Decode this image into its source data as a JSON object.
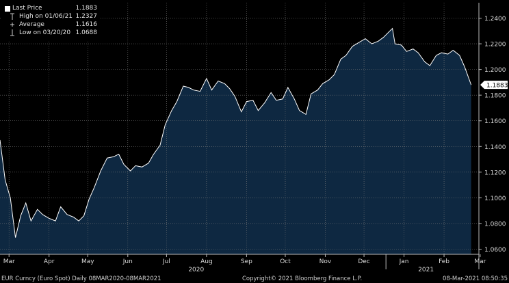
{
  "legend": {
    "items": [
      {
        "label": "Last Price",
        "value": "1.1883",
        "icon": "filled-square-icon"
      },
      {
        "label": "High on 01/06/21",
        "value": "1.2327",
        "icon": "high-marker-icon"
      },
      {
        "label": "Average",
        "value": "1.1616",
        "icon": "cross-marker-icon"
      },
      {
        "label": "Low on 03/20/20",
        "value": "1.0688",
        "icon": "low-marker-icon"
      }
    ]
  },
  "last_price_tag": "1.1883",
  "footer": {
    "left": "EUR Curncy (Euro Spot)  Daily 08MAR2020-08MAR2021",
    "center": "Copyright© 2021 Bloomberg Finance L.P.",
    "right": "08-Mar-2021 08:50:35"
  },
  "colors": {
    "background": "#000000",
    "area_fill": "#0e2841",
    "line": "#ffffff",
    "grid": "#7a7a7a",
    "tag_bg": "#ffffff",
    "tag_text": "#000000"
  },
  "chart_data": {
    "type": "area",
    "series": [
      {
        "name": "Last Price",
        "x": [
          "2020-03-08",
          "2020-03-12",
          "2020-03-16",
          "2020-03-20",
          "2020-03-24",
          "2020-03-28",
          "2020-04-01",
          "2020-04-06",
          "2020-04-10",
          "2020-04-15",
          "2020-04-20",
          "2020-04-24",
          "2020-04-29",
          "2020-05-04",
          "2020-05-08",
          "2020-05-12",
          "2020-05-16",
          "2020-05-20",
          "2020-05-25",
          "2020-05-30",
          "2020-06-04",
          "2020-06-08",
          "2020-06-12",
          "2020-06-17",
          "2020-06-21",
          "2020-06-26",
          "2020-07-01",
          "2020-07-05",
          "2020-07-10",
          "2020-07-14",
          "2020-07-19",
          "2020-07-23",
          "2020-07-28",
          "2020-08-01",
          "2020-08-05",
          "2020-08-10",
          "2020-08-15",
          "2020-08-19",
          "2020-08-24",
          "2020-08-29",
          "2020-09-02",
          "2020-09-06",
          "2020-09-11",
          "2020-09-15",
          "2020-09-20",
          "2020-09-24",
          "2020-09-29",
          "2020-10-04",
          "2020-10-08",
          "2020-10-13",
          "2020-10-17",
          "2020-10-22",
          "2020-10-26",
          "2020-10-31",
          "2020-11-04",
          "2020-11-09",
          "2020-11-13",
          "2020-11-18",
          "2020-11-22",
          "2020-11-27",
          "2020-12-01",
          "2020-12-06",
          "2020-12-11",
          "2020-12-16",
          "2020-12-21",
          "2020-12-26",
          "2020-12-30",
          "2021-01-04",
          "2021-01-06",
          "2021-01-08",
          "2021-01-13",
          "2021-01-17",
          "2021-01-22",
          "2021-01-26",
          "2021-01-31",
          "2021-02-04",
          "2021-02-09",
          "2021-02-13",
          "2021-02-18",
          "2021-02-22",
          "2021-02-27",
          "2021-03-03",
          "2021-03-08"
        ],
        "y": [
          1.145,
          1.114,
          1.1,
          1.069,
          1.086,
          1.096,
          1.082,
          1.091,
          1.087,
          1.084,
          1.082,
          1.093,
          1.087,
          1.085,
          1.082,
          1.086,
          1.099,
          1.108,
          1.121,
          1.131,
          1.132,
          1.134,
          1.126,
          1.121,
          1.125,
          1.124,
          1.127,
          1.134,
          1.141,
          1.157,
          1.168,
          1.175,
          1.187,
          1.186,
          1.184,
          1.183,
          1.193,
          1.184,
          1.191,
          1.189,
          1.185,
          1.179,
          1.167,
          1.175,
          1.176,
          1.168,
          1.174,
          1.182,
          1.176,
          1.177,
          1.186,
          1.177,
          1.168,
          1.165,
          1.181,
          1.184,
          1.189,
          1.192,
          1.196,
          1.208,
          1.211,
          1.218,
          1.221,
          1.224,
          1.22,
          1.222,
          1.225,
          1.23,
          1.232,
          1.22,
          1.219,
          1.214,
          1.216,
          1.213,
          1.206,
          1.203,
          1.211,
          1.213,
          1.212,
          1.215,
          1.211,
          1.202,
          1.188
        ]
      }
    ],
    "ylim": [
      1.056,
      1.252
    ],
    "y_ticks": [
      "1.0600",
      "1.0800",
      "1.1000",
      "1.1200",
      "1.1400",
      "1.1600",
      "1.1800",
      "1.2000",
      "1.2200",
      "1.2400"
    ],
    "x_ticks": [
      {
        "label": "Mar",
        "date": "2020-03-15"
      },
      {
        "label": "Apr",
        "date": "2020-04-15"
      },
      {
        "label": "May",
        "date": "2020-05-15"
      },
      {
        "label": "Jun",
        "date": "2020-06-15"
      },
      {
        "label": "Jul",
        "date": "2020-07-15"
      },
      {
        "label": "Aug",
        "date": "2020-08-15"
      },
      {
        "label": "Sep",
        "date": "2020-09-15"
      },
      {
        "label": "Oct",
        "date": "2020-10-15"
      },
      {
        "label": "Nov",
        "date": "2020-11-15"
      },
      {
        "label": "Dec",
        "date": "2020-12-15"
      },
      {
        "label": "Jan",
        "date": "2021-01-15"
      },
      {
        "label": "Feb",
        "date": "2021-02-15"
      },
      {
        "label": "Mar",
        "date": "2021-03-15"
      }
    ],
    "year_labels": [
      {
        "label": "2020",
        "date": "2020-08-07"
      },
      {
        "label": "2021",
        "date": "2021-02-01"
      }
    ],
    "grid": true,
    "y_axis_side": "right",
    "legend_position": "top-left"
  }
}
